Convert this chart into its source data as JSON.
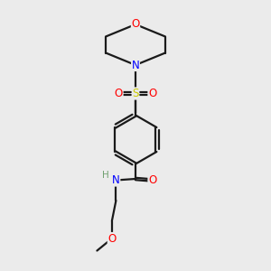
{
  "bg_color": "#ebebeb",
  "bond_color": "#1a1a1a",
  "atom_colors": {
    "O": "#ff0000",
    "N": "#0000ff",
    "S": "#cccc00",
    "C": "#1a1a1a",
    "H": "#6fa06f"
  },
  "figsize": [
    3.0,
    3.0
  ],
  "dpi": 100,
  "lw": 1.6,
  "fs": 8.5
}
